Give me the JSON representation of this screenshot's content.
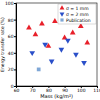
{
  "chart_data": {
    "type": "scatter",
    "x_label": "Mass (kg/m²)",
    "y_label": "Energy transfer rate (%)",
    "xlim": [
      60,
      110
    ],
    "xticks": [
      60,
      70,
      80,
      90,
      100,
      110
    ],
    "ylim": [
      0,
      100
    ],
    "yticks": [
      0,
      20,
      40,
      60,
      80,
      100
    ],
    "legend": "top-right",
    "series": [
      {
        "name": "σ = 1 mm",
        "color": "#e8202a",
        "marker": "triangle-up",
        "x": [
          68,
          72,
          76,
          80,
          84,
          90,
          95,
          100,
          104
        ],
        "values": [
          70,
          62,
          75,
          48,
          78,
          58,
          64,
          72,
          52
        ]
      },
      {
        "name": "σ = 2 mm",
        "color": "#2a4fc9",
        "marker": "triangle-down",
        "x": [
          70,
          78,
          82,
          88,
          92,
          97,
          102
        ],
        "values": [
          40,
          50,
          30,
          44,
          55,
          38,
          28
        ]
      },
      {
        "name": "Publication",
        "color": "#7fa7d6",
        "marker": "square",
        "x": [
          74
        ],
        "values": [
          20
        ]
      }
    ]
  }
}
